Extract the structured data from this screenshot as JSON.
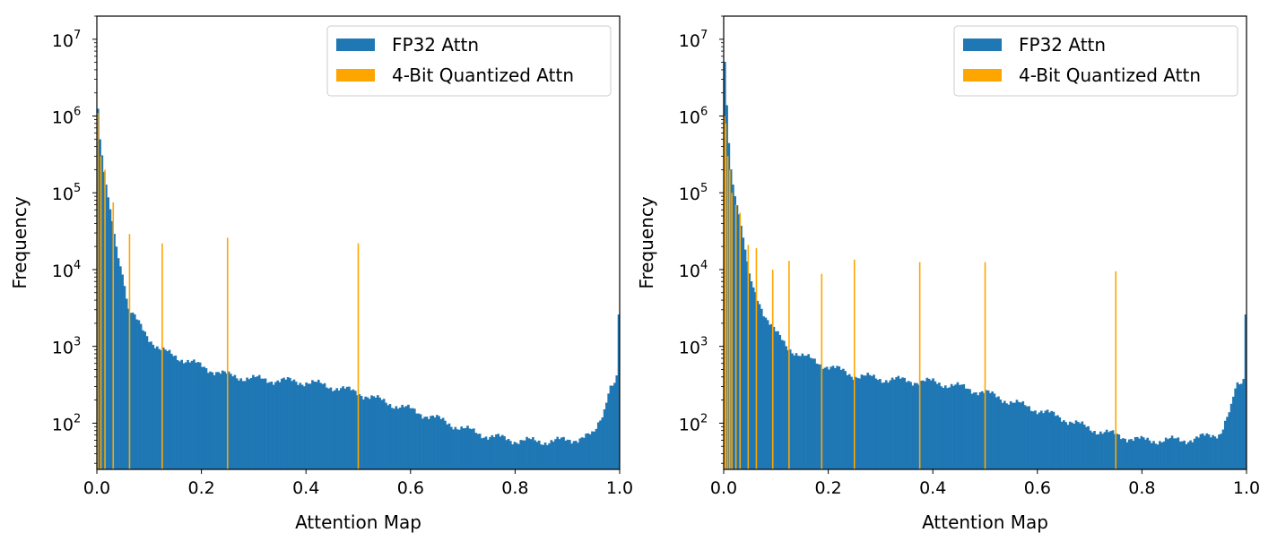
{
  "chart_data": [
    {
      "type": "bar",
      "xlabel": "Attention Map",
      "ylabel": "Frequency",
      "yscale": "log",
      "xlim": [
        0.0,
        1.0
      ],
      "ylim": [
        25,
        20000000
      ],
      "x_ticks": [
        "0.0",
        "0.2",
        "0.4",
        "0.6",
        "0.8",
        "1.0"
      ],
      "y_ticks": [
        {
          "base": "10",
          "exp": "2",
          "value": 100
        },
        {
          "base": "10",
          "exp": "3",
          "value": 1000
        },
        {
          "base": "10",
          "exp": "4",
          "value": 10000
        },
        {
          "base": "10",
          "exp": "5",
          "value": 100000
        },
        {
          "base": "10",
          "exp": "6",
          "value": 1000000
        },
        {
          "base": "10",
          "exp": "7",
          "value": 10000000
        }
      ],
      "legend": "top-right",
      "series": [
        {
          "name": "FP32 Attn",
          "kind": "histogram",
          "color": "#1f77b4",
          "bins": 256,
          "shape_points": [
            [
              0.0,
              2500000
            ],
            [
              0.004,
              600000
            ],
            [
              0.008,
              400000
            ],
            [
              0.012,
              220000
            ],
            [
              0.016,
              150000
            ],
            [
              0.02,
              100000
            ],
            [
              0.03,
              40000
            ],
            [
              0.04,
              15000
            ],
            [
              0.05,
              8000
            ],
            [
              0.06,
              3000
            ],
            [
              0.08,
              2000
            ],
            [
              0.1,
              1300
            ],
            [
              0.12,
              900
            ],
            [
              0.15,
              750
            ],
            [
              0.2,
              550
            ],
            [
              0.25,
              420
            ],
            [
              0.3,
              380
            ],
            [
              0.35,
              360
            ],
            [
              0.4,
              345
            ],
            [
              0.45,
              300
            ],
            [
              0.5,
              250
            ],
            [
              0.55,
              190
            ],
            [
              0.6,
              150
            ],
            [
              0.65,
              115
            ],
            [
              0.7,
              85
            ],
            [
              0.75,
              68
            ],
            [
              0.8,
              60
            ],
            [
              0.85,
              58
            ],
            [
              0.9,
              60
            ],
            [
              0.95,
              70
            ],
            [
              0.97,
              150
            ],
            [
              0.98,
              300
            ],
            [
              0.99,
              330
            ],
            [
              0.996,
              400
            ],
            [
              1.0,
              2600
            ]
          ]
        },
        {
          "name": "4-Bit Quantized Attn",
          "kind": "spikes",
          "color": "#ffa500",
          "spikes": [
            [
              0.0,
              1100000
            ],
            [
              0.0078,
              300000
            ],
            [
              0.0156,
              200000
            ],
            [
              0.0313,
              75000
            ],
            [
              0.0625,
              29000
            ],
            [
              0.125,
              22000
            ],
            [
              0.25,
              26000
            ],
            [
              0.5,
              22000
            ]
          ]
        }
      ]
    },
    {
      "type": "bar",
      "xlabel": "Attention Map",
      "ylabel": "Frequency",
      "yscale": "log",
      "xlim": [
        0.0,
        1.0
      ],
      "ylim": [
        25,
        20000000
      ],
      "x_ticks": [
        "0.0",
        "0.2",
        "0.4",
        "0.6",
        "0.8",
        "1.0"
      ],
      "y_ticks": [
        {
          "base": "10",
          "exp": "2",
          "value": 100
        },
        {
          "base": "10",
          "exp": "3",
          "value": 1000
        },
        {
          "base": "10",
          "exp": "4",
          "value": 10000
        },
        {
          "base": "10",
          "exp": "5",
          "value": 100000
        },
        {
          "base": "10",
          "exp": "6",
          "value": 1000000
        },
        {
          "base": "10",
          "exp": "7",
          "value": 10000000
        }
      ],
      "legend": "top-right",
      "series": [
        {
          "name": "FP32 Attn",
          "kind": "histogram",
          "color": "#1f77b4",
          "bins": 256,
          "shape_points": [
            [
              0.0,
              10000000
            ],
            [
              0.004,
              2500000
            ],
            [
              0.008,
              700000
            ],
            [
              0.012,
              250000
            ],
            [
              0.016,
              150000
            ],
            [
              0.02,
              100000
            ],
            [
              0.03,
              50000
            ],
            [
              0.04,
              20000
            ],
            [
              0.05,
              8000
            ],
            [
              0.06,
              5000
            ],
            [
              0.08,
              2500
            ],
            [
              0.1,
              1500
            ],
            [
              0.12,
              1000
            ],
            [
              0.15,
              750
            ],
            [
              0.2,
              550
            ],
            [
              0.25,
              420
            ],
            [
              0.3,
              380
            ],
            [
              0.35,
              360
            ],
            [
              0.4,
              345
            ],
            [
              0.45,
              300
            ],
            [
              0.5,
              250
            ],
            [
              0.55,
              190
            ],
            [
              0.6,
              150
            ],
            [
              0.65,
              115
            ],
            [
              0.7,
              85
            ],
            [
              0.75,
              70
            ],
            [
              0.8,
              60
            ],
            [
              0.85,
              60
            ],
            [
              0.9,
              62
            ],
            [
              0.95,
              75
            ],
            [
              0.97,
              150
            ],
            [
              0.98,
              300
            ],
            [
              0.99,
              340
            ],
            [
              0.996,
              400
            ],
            [
              1.0,
              2600
            ]
          ]
        },
        {
          "name": "4-Bit Quantized Attn",
          "kind": "spikes",
          "color": "#ffa500",
          "spikes": [
            [
              0.0,
              1000000
            ],
            [
              0.0039,
              800000
            ],
            [
              0.0078,
              300000
            ],
            [
              0.0117,
              200000
            ],
            [
              0.0156,
              100000
            ],
            [
              0.0234,
              70000
            ],
            [
              0.0313,
              55000
            ],
            [
              0.0469,
              21000
            ],
            [
              0.0625,
              19000
            ],
            [
              0.0938,
              10000
            ],
            [
              0.125,
              13000
            ],
            [
              0.1875,
              8800
            ],
            [
              0.25,
              13500
            ],
            [
              0.375,
              12500
            ],
            [
              0.5,
              12500
            ],
            [
              0.75,
              9500
            ]
          ]
        }
      ]
    }
  ]
}
